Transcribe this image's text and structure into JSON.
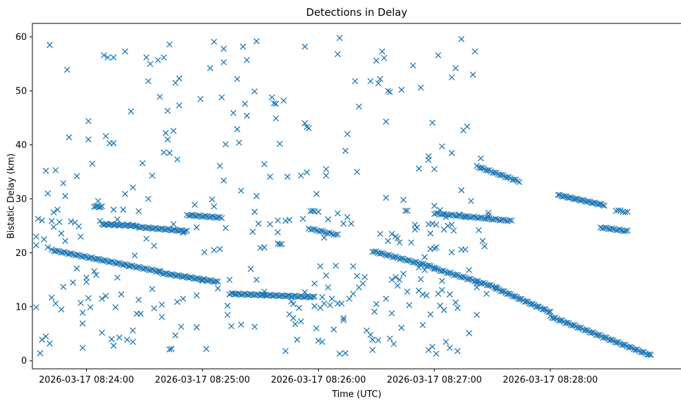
{
  "chart_data": {
    "type": "scatter",
    "title": "Detections in Delay",
    "xlabel": "Time (UTC)",
    "ylabel": "Bistatic Delay (km)",
    "marker": "x",
    "marker_color": "#1f77b4",
    "xlim_seconds_from_08_23_40": [
      -8,
      328
    ],
    "ylim": [
      -1.5,
      62.5
    ],
    "x_ticks": [
      {
        "value": 20,
        "label": "2026-03-17 08:24:00"
      },
      {
        "value": 80,
        "label": "2026-03-17 08:25:00"
      },
      {
        "value": 140,
        "label": "2026-03-17 08:26:00"
      },
      {
        "value": 200,
        "label": "2026-03-17 08:27:00"
      },
      {
        "value": 260,
        "label": "2026-03-17 08:28:00"
      }
    ],
    "y_ticks": [
      0,
      10,
      20,
      30,
      40,
      50,
      60
    ],
    "grid": false,
    "track_segments": [
      {
        "x0": 2,
        "x1": 58,
        "y0": 20.5,
        "y1": 16.5,
        "n": 60
      },
      {
        "x0": 58,
        "x1": 88,
        "y0": 16.3,
        "y1": 14.6,
        "n": 35
      },
      {
        "x0": 95,
        "x1": 138,
        "y0": 12.4,
        "y1": 11.8,
        "n": 50
      },
      {
        "x0": 168,
        "x1": 200,
        "y0": 20.3,
        "y1": 17.3,
        "n": 35
      },
      {
        "x0": 200,
        "x1": 232,
        "y0": 17.1,
        "y1": 13.6,
        "n": 35
      },
      {
        "x0": 232,
        "x1": 260,
        "y0": 13.4,
        "y1": 9.0,
        "n": 35
      },
      {
        "x0": 260,
        "x1": 312,
        "y0": 8.2,
        "y1": 1.0,
        "n": 60
      },
      {
        "x0": 28,
        "x1": 46,
        "y0": 25.3,
        "y1": 25.0,
        "n": 25
      },
      {
        "x0": 46,
        "x1": 72,
        "y0": 24.8,
        "y1": 24.0,
        "n": 30
      },
      {
        "x0": 72,
        "x1": 90,
        "y0": 27.0,
        "y1": 26.5,
        "n": 20
      },
      {
        "x0": 135,
        "x1": 150,
        "y0": 24.5,
        "y1": 23.3,
        "n": 15
      },
      {
        "x0": 200,
        "x1": 240,
        "y0": 27.3,
        "y1": 25.9,
        "n": 40
      },
      {
        "x0": 222,
        "x1": 244,
        "y0": 36.0,
        "y1": 33.2,
        "n": 25
      },
      {
        "x0": 264,
        "x1": 288,
        "y0": 30.7,
        "y1": 28.8,
        "n": 30
      },
      {
        "x0": 286,
        "x1": 300,
        "y0": 24.7,
        "y1": 24.0,
        "n": 15
      },
      {
        "x0": 24,
        "x1": 28,
        "y0": 28.6,
        "y1": 28.5,
        "n": 6
      },
      {
        "x0": 294,
        "x1": 300,
        "y0": 27.9,
        "y1": 27.5,
        "n": 6
      }
    ],
    "scattered_points": [
      [
        -6,
        9.9
      ],
      [
        -6,
        23
      ],
      [
        -6,
        21.4
      ],
      [
        -5,
        26.3
      ],
      [
        -4,
        1.4
      ],
      [
        -3,
        26
      ],
      [
        -3,
        3.9
      ],
      [
        -2,
        22.5
      ],
      [
        -1,
        4.5
      ],
      [
        -1,
        35.2
      ],
      [
        0,
        21
      ],
      [
        0,
        31
      ],
      [
        1,
        58.5
      ],
      [
        1,
        3.2
      ],
      [
        2,
        11.7
      ],
      [
        2,
        25.9
      ],
      [
        3,
        24.8
      ],
      [
        3,
        27.5
      ],
      [
        4,
        35.3
      ],
      [
        4,
        10.6
      ],
      [
        5,
        28
      ],
      [
        6,
        25.7
      ],
      [
        7,
        23.6
      ],
      [
        7,
        9.5
      ],
      [
        8,
        32.9
      ],
      [
        8,
        13.7
      ],
      [
        9,
        30.5
      ],
      [
        9,
        22.2
      ],
      [
        10,
        53.9
      ],
      [
        11,
        41.4
      ],
      [
        12,
        25.8
      ],
      [
        13,
        14.5
      ],
      [
        14,
        25.6
      ],
      [
        15,
        34.2
      ],
      [
        15,
        17.1
      ],
      [
        16,
        24.9
      ],
      [
        17,
        23
      ],
      [
        17,
        10.7
      ],
      [
        18,
        2.4
      ],
      [
        18,
        8.9
      ],
      [
        18,
        6.9
      ],
      [
        20,
        15.4
      ],
      [
        20,
        14.6
      ],
      [
        21,
        44.4
      ],
      [
        21,
        41
      ],
      [
        21,
        11.6
      ],
      [
        22,
        9.9
      ],
      [
        23,
        36.5
      ],
      [
        24,
        16.6
      ],
      [
        25,
        15.9
      ],
      [
        26,
        29.6
      ],
      [
        27,
        25.9
      ],
      [
        28,
        5.2
      ],
      [
        28,
        11.5
      ],
      [
        29,
        56.6
      ],
      [
        30,
        12
      ],
      [
        30,
        41.6
      ],
      [
        31,
        56.2
      ],
      [
        32,
        40.3
      ],
      [
        33,
        4
      ],
      [
        34,
        40.3
      ],
      [
        34,
        56.2
      ],
      [
        34,
        28
      ],
      [
        34,
        2.8
      ],
      [
        35,
        9.9
      ],
      [
        36,
        26.2
      ],
      [
        36,
        15.4
      ],
      [
        37,
        4.3
      ],
      [
        38,
        12.3
      ],
      [
        39,
        28
      ],
      [
        40,
        57.3
      ],
      [
        40,
        30.9
      ],
      [
        41,
        3.9
      ],
      [
        42,
        17.5
      ],
      [
        43,
        46.2
      ],
      [
        44,
        32.1
      ],
      [
        44,
        3.5
      ],
      [
        44,
        5.6
      ],
      [
        45,
        19.5
      ],
      [
        46,
        8.7
      ],
      [
        47,
        27.7
      ],
      [
        47,
        11.3
      ],
      [
        48,
        8.7
      ],
      [
        49,
        36.6
      ],
      [
        51,
        56.2
      ],
      [
        51,
        22.6
      ],
      [
        52,
        30
      ],
      [
        52,
        51.8
      ],
      [
        53,
        55
      ],
      [
        54,
        34.3
      ],
      [
        54,
        13.3
      ],
      [
        55,
        21.3
      ],
      [
        55,
        9.7
      ],
      [
        57,
        55.7
      ],
      [
        58,
        48.9
      ],
      [
        59,
        10.4
      ],
      [
        59,
        8.1
      ],
      [
        60,
        56.2
      ],
      [
        60,
        38.6
      ],
      [
        61,
        42.2
      ],
      [
        62,
        41
      ],
      [
        62,
        46.3
      ],
      [
        63,
        58.6
      ],
      [
        63,
        38.5
      ],
      [
        63,
        2.1
      ],
      [
        64,
        2.2
      ],
      [
        65,
        42.6
      ],
      [
        65,
        25.3
      ],
      [
        66,
        4.7
      ],
      [
        66,
        51.5
      ],
      [
        67,
        37.3
      ],
      [
        67,
        10.9
      ],
      [
        68,
        52.3
      ],
      [
        68,
        47.3
      ],
      [
        69,
        6.3
      ],
      [
        70,
        23.7
      ],
      [
        70,
        11.5
      ],
      [
        76,
        28.9
      ],
      [
        77,
        24.7
      ],
      [
        77,
        6.2
      ],
      [
        77,
        12.1
      ],
      [
        79,
        48.5
      ],
      [
        80,
        14.8
      ],
      [
        81,
        20.1
      ],
      [
        82,
        2.2
      ],
      [
        84,
        54.2
      ],
      [
        85,
        29.9
      ],
      [
        86,
        59.1
      ],
      [
        86,
        28.6
      ],
      [
        86,
        20.5
      ],
      [
        88,
        13.4
      ],
      [
        89,
        36.1
      ],
      [
        89,
        20.7
      ],
      [
        90,
        48.8
      ],
      [
        91,
        57.8
      ],
      [
        91,
        55.3
      ],
      [
        91,
        33.4
      ],
      [
        92,
        40.1
      ],
      [
        92,
        24.6
      ],
      [
        93,
        8.5
      ],
      [
        93,
        10.2
      ],
      [
        94,
        15
      ],
      [
        94,
        12.3
      ],
      [
        95,
        6.4
      ],
      [
        96,
        45.9
      ],
      [
        97,
        12.4
      ],
      [
        98,
        52.2
      ],
      [
        98,
        42.9
      ],
      [
        99,
        40.4
      ],
      [
        100,
        31.5
      ],
      [
        100,
        6.7
      ],
      [
        101,
        58.2
      ],
      [
        102,
        47.6
      ],
      [
        103,
        55.7
      ],
      [
        103,
        45.4
      ],
      [
        105,
        17
      ],
      [
        106,
        23.9
      ],
      [
        107,
        49.9
      ],
      [
        107,
        27.6
      ],
      [
        107,
        6.3
      ],
      [
        108,
        59.2
      ],
      [
        108,
        30.5
      ],
      [
        108,
        15
      ],
      [
        109,
        25.4
      ],
      [
        110,
        20.9
      ],
      [
        111,
        12.3
      ],
      [
        112,
        36.4
      ],
      [
        112,
        21
      ],
      [
        112,
        12.8
      ],
      [
        115,
        34.1
      ],
      [
        115,
        25.3
      ],
      [
        116,
        48.8
      ],
      [
        117,
        47.7
      ],
      [
        118,
        44.9
      ],
      [
        118,
        47.6
      ],
      [
        119,
        26
      ],
      [
        119,
        23.8
      ],
      [
        119,
        21.7
      ],
      [
        120,
        40.2
      ],
      [
        120,
        21.6
      ],
      [
        121,
        21.6
      ],
      [
        122,
        48.2
      ],
      [
        123,
        25.9
      ],
      [
        123,
        1.8
      ],
      [
        124,
        34.1
      ],
      [
        125,
        26.1
      ],
      [
        125,
        8.6
      ],
      [
        126,
        11
      ],
      [
        127,
        10.5
      ],
      [
        127,
        7.9
      ],
      [
        128,
        6.8
      ],
      [
        129,
        3.9
      ],
      [
        130,
        9.8
      ],
      [
        131,
        34.3
      ],
      [
        131,
        7.3
      ],
      [
        132,
        26.3
      ],
      [
        133,
        58.2
      ],
      [
        133,
        44
      ],
      [
        133,
        12.7
      ],
      [
        134,
        34.9
      ],
      [
        134,
        43.3
      ],
      [
        135,
        43.1
      ],
      [
        136,
        27.7
      ],
      [
        137,
        27.8
      ],
      [
        138,
        14.3
      ],
      [
        138,
        10.1
      ],
      [
        138,
        27.7
      ],
      [
        139,
        30.9
      ],
      [
        139,
        6
      ],
      [
        140,
        3.7
      ],
      [
        140,
        27.6
      ],
      [
        141,
        17.5
      ],
      [
        141,
        9.8
      ],
      [
        142,
        3.5
      ],
      [
        142,
        11.8
      ],
      [
        143,
        10.6
      ],
      [
        143,
        22.8
      ],
      [
        144,
        35.5
      ],
      [
        144,
        34.3
      ],
      [
        144,
        15.8
      ],
      [
        145,
        26.2
      ],
      [
        145,
        13.6
      ],
      [
        146,
        10.3
      ],
      [
        147,
        11.5
      ],
      [
        148,
        5.8
      ],
      [
        149,
        17.6
      ],
      [
        150,
        56.8
      ],
      [
        150,
        27.3
      ],
      [
        150,
        10.6
      ],
      [
        151,
        59.8
      ],
      [
        151,
        1.3
      ],
      [
        152,
        10.6
      ],
      [
        153,
        25.4
      ],
      [
        153,
        7.9
      ],
      [
        153,
        7.5
      ],
      [
        154,
        38.9
      ],
      [
        154,
        1.4
      ],
      [
        155,
        26.6
      ],
      [
        155,
        42
      ],
      [
        156,
        11.5
      ],
      [
        157,
        25.4
      ],
      [
        158,
        17.5
      ],
      [
        158,
        12.4
      ],
      [
        159,
        51.8
      ],
      [
        160,
        35
      ],
      [
        160,
        15.7
      ],
      [
        161,
        47.1
      ],
      [
        161,
        13.6
      ],
      [
        163,
        14.3
      ],
      [
        164,
        15.5
      ],
      [
        165,
        5.6
      ],
      [
        167,
        51.8
      ],
      [
        167,
        4.8
      ],
      [
        168,
        2
      ],
      [
        168,
        3.9
      ],
      [
        169,
        9.1
      ],
      [
        170,
        55.6
      ],
      [
        170,
        10.5
      ],
      [
        171,
        51.4
      ],
      [
        171,
        3.8
      ],
      [
        172,
        52.2
      ],
      [
        172,
        23.5
      ],
      [
        173,
        57.3
      ],
      [
        174,
        56.1
      ],
      [
        175,
        11.5
      ],
      [
        175,
        30.2
      ],
      [
        175,
        44.3
      ],
      [
        176,
        50
      ],
      [
        176,
        22.2
      ],
      [
        177,
        49.8
      ],
      [
        177,
        4.1
      ],
      [
        178,
        23.5
      ],
      [
        178,
        8.8
      ],
      [
        178,
        15
      ],
      [
        179,
        3.1
      ],
      [
        180,
        15.5
      ],
      [
        180,
        23
      ],
      [
        181,
        13.9
      ],
      [
        181,
        22.7
      ],
      [
        182,
        21.9
      ],
      [
        182,
        15
      ],
      [
        183,
        50.2
      ],
      [
        183,
        6.1
      ],
      [
        184,
        29.8
      ],
      [
        184,
        16.1
      ],
      [
        185,
        27.8
      ],
      [
        186,
        12.8
      ],
      [
        186,
        27.8
      ],
      [
        187,
        10.3
      ],
      [
        188,
        21.9
      ],
      [
        189,
        54.7
      ],
      [
        190,
        24.3
      ],
      [
        190,
        25.2
      ],
      [
        191,
        24.7
      ],
      [
        192,
        13
      ],
      [
        192,
        35.6
      ],
      [
        192,
        17.3
      ],
      [
        193,
        50.6
      ],
      [
        193,
        15.1
      ],
      [
        194,
        12.3
      ],
      [
        194,
        6.6
      ],
      [
        195,
        16.8
      ],
      [
        195,
        19.2
      ],
      [
        196,
        12.1
      ],
      [
        197,
        2
      ],
      [
        197,
        25.3
      ],
      [
        197,
        37.9
      ],
      [
        197,
        37.2
      ],
      [
        198,
        8.6
      ],
      [
        198,
        23.6
      ],
      [
        198,
        20.7
      ],
      [
        199,
        25.4
      ],
      [
        199,
        44.1
      ],
      [
        199,
        2.6
      ],
      [
        200,
        28.7
      ],
      [
        200,
        35.5
      ],
      [
        200,
        20.8
      ],
      [
        201,
        21
      ],
      [
        201,
        1.3
      ],
      [
        201,
        25.2
      ],
      [
        202,
        12.4
      ],
      [
        202,
        56.6
      ],
      [
        203,
        27.9
      ],
      [
        203,
        10.2
      ],
      [
        204,
        13.1
      ],
      [
        204,
        39.7
      ],
      [
        204,
        14.8
      ],
      [
        205,
        24.3
      ],
      [
        205,
        9.4
      ],
      [
        206,
        3.5
      ],
      [
        206,
        26.6
      ],
      [
        207,
        25
      ],
      [
        208,
        2.4
      ],
      [
        208,
        12.3
      ],
      [
        209,
        25.2
      ],
      [
        209,
        52.5
      ],
      [
        209,
        38.5
      ],
      [
        209,
        20.1
      ],
      [
        210,
        24.1
      ],
      [
        211,
        54.2
      ],
      [
        211,
        10.8
      ],
      [
        212,
        9.8
      ],
      [
        212,
        1.8
      ],
      [
        213,
        27.1
      ],
      [
        214,
        59.6
      ],
      [
        214,
        31.6
      ],
      [
        214,
        20.6
      ],
      [
        215,
        42.7
      ],
      [
        216,
        20.6
      ],
      [
        216,
        26.6
      ],
      [
        217,
        43.4
      ],
      [
        218,
        5.1
      ],
      [
        218,
        16.8
      ],
      [
        219,
        29.6
      ],
      [
        220,
        53
      ],
      [
        221,
        57.3
      ],
      [
        222,
        14.3
      ],
      [
        222,
        13.6
      ],
      [
        222,
        8.5
      ],
      [
        223,
        24.2
      ],
      [
        224,
        37.5
      ],
      [
        225,
        22.2
      ],
      [
        226,
        21.2
      ],
      [
        227,
        12.4
      ],
      [
        228,
        27.4
      ],
      [
        228,
        26.9
      ]
    ]
  }
}
